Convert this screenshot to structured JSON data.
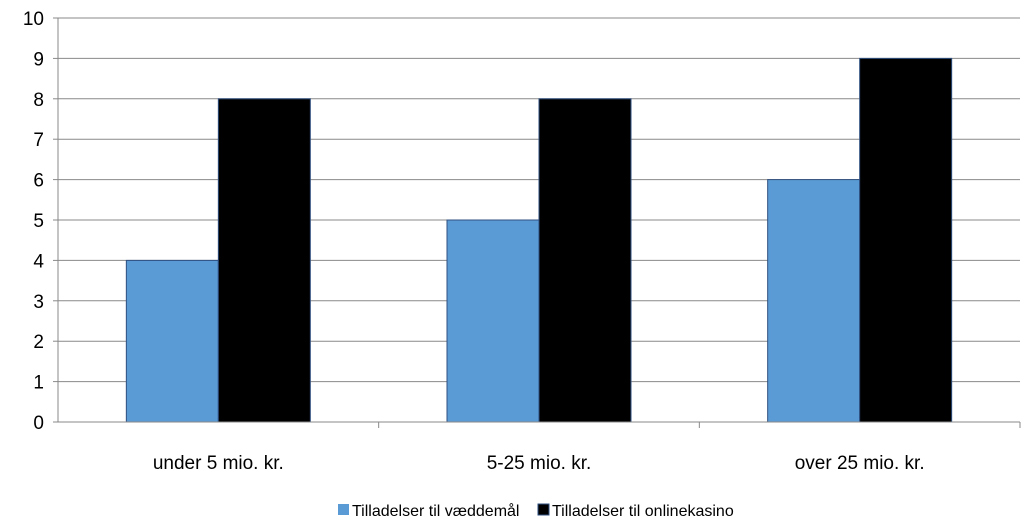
{
  "chart_data": {
    "type": "bar",
    "categories": [
      "under 5 mio. kr.",
      "5-25 mio. kr.",
      "over 25 mio. kr."
    ],
    "series": [
      {
        "name": "Tilladelser til væddemål",
        "values": [
          4,
          5,
          6
        ],
        "color": "#5b9bd5"
      },
      {
        "name": "Tilladelser til onlinekasino",
        "values": [
          8,
          8,
          9
        ],
        "color": "#000000"
      }
    ],
    "ylim": [
      0,
      10
    ],
    "yticks": [
      0,
      1,
      2,
      3,
      4,
      5,
      6,
      7,
      8,
      9,
      10
    ],
    "grid": true,
    "legend_position": "bottom",
    "colors": {
      "grid": "#898989",
      "axis": "#898989",
      "bar_border": "#2f4f7f"
    }
  }
}
